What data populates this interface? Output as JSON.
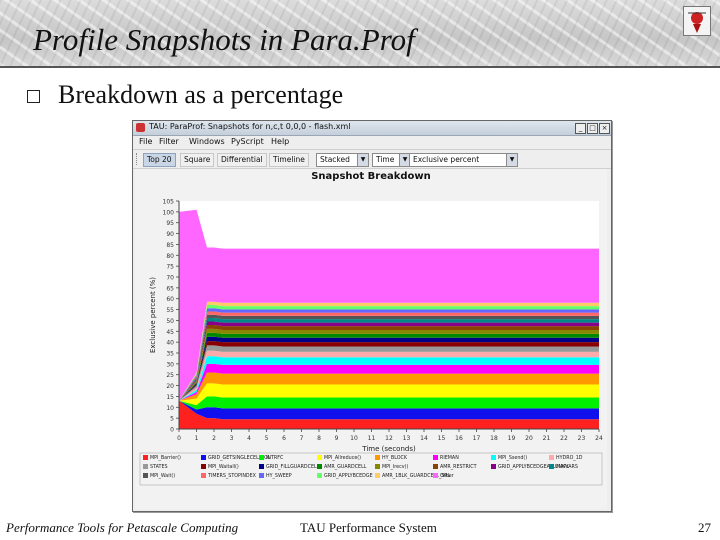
{
  "slide": {
    "title": "Profile Snapshots in Para.Prof",
    "bullet": "Breakdown as a percentage",
    "footer_left": "Performance Tools for Petascale Computing",
    "footer_center": "TAU Performance System",
    "page_number": "27"
  },
  "window": {
    "title": "TAU: ParaProf: Snapshots for n,c,t 0,0,0 - flash.xml",
    "menus": [
      "File",
      "Filter",
      "Windows",
      "PyScript",
      "Help"
    ],
    "tabs": [
      "Top 20",
      "Square",
      "Differential",
      "Timeline"
    ],
    "selected_tab": "Top 20",
    "chart_style_select": "Stacked",
    "x_axis_select": "Time",
    "metric_select": "Exclusive percent"
  },
  "chart_data": {
    "type": "area",
    "title": "Snapshot Breakdown",
    "xlabel": "Time (seconds)",
    "ylabel": "Exclusive percent (%)",
    "x_ticks": [
      "0",
      "1",
      "2",
      "3",
      "4",
      "5",
      "6",
      "7",
      "8",
      "9",
      "10",
      "11",
      "12",
      "13",
      "14",
      "15",
      "16",
      "17",
      "18",
      "19",
      "20",
      "21",
      "22",
      "23",
      "24"
    ],
    "y_ticks": [
      "0",
      "5",
      "10",
      "15",
      "20",
      "25",
      "30",
      "35",
      "40",
      "45",
      "50",
      "55",
      "60",
      "65",
      "70",
      "75",
      "80",
      "85",
      "90",
      "95",
      "100",
      "105"
    ],
    "xlim": [
      0,
      24
    ],
    "ylim": [
      0,
      105
    ],
    "x": [
      0,
      1,
      1.6,
      2,
      2.5,
      3,
      4,
      5,
      6,
      8,
      10,
      12,
      14,
      16,
      18,
      20,
      22,
      24
    ],
    "series_shape": [
      0,
      0,
      0.5,
      0.7,
      0.82,
      0.88,
      0.92,
      0.94,
      0.96,
      0.97,
      0.98,
      0.985,
      0.99,
      0.99,
      0.995,
      1.0,
      1.0,
      1.0
    ],
    "series": [
      {
        "name": "MPI_Barrier()",
        "color": "#ff2020",
        "values": [
          13,
          7,
          5,
          5,
          4.5,
          4.5,
          4.5,
          4.5,
          4.5,
          4.5,
          4.5,
          4.5,
          4.5,
          4.5,
          4.5,
          4.5,
          4.5,
          4.5
        ]
      },
      {
        "name": "GRID_GETSINGLECELLVOL",
        "color": "#1010ee",
        "values": [
          0,
          2,
          5,
          5,
          5,
          5,
          5,
          5,
          5,
          5,
          5,
          5,
          5,
          5,
          5,
          5,
          5,
          5
        ]
      },
      {
        "name": "INTRFC",
        "color": "#00ee00",
        "values": [
          0,
          2,
          5,
          5,
          5,
          5,
          5,
          5,
          5,
          5,
          5,
          5,
          5,
          5,
          5,
          5,
          5,
          5
        ]
      },
      {
        "name": "MPI_Allreduce()",
        "color": "#ffff00",
        "values": [
          0,
          3,
          6,
          6,
          6,
          6,
          6,
          6,
          6,
          6,
          6,
          6,
          6,
          6,
          6,
          6,
          6,
          6
        ]
      },
      {
        "name": "HY_BLOCK",
        "color": "#ff9900",
        "values": [
          0,
          2,
          5,
          5,
          5,
          5,
          5,
          5,
          5,
          5,
          5,
          5,
          5,
          5,
          5,
          5,
          5,
          5
        ]
      },
      {
        "name": "RIEMAN",
        "color": "#ff00ff",
        "values": [
          0,
          1,
          4,
          4,
          4,
          4,
          4,
          4,
          4,
          4,
          4,
          4,
          4,
          4,
          4,
          4,
          4,
          4
        ]
      },
      {
        "name": "MPI_Ssend()",
        "color": "#00ffff",
        "values": [
          0,
          1,
          3.5,
          3.5,
          3.5,
          3.5,
          3.5,
          3.5,
          3.5,
          3.5,
          3.5,
          3.5,
          3.5,
          3.5,
          3.5,
          3.5,
          3.5,
          3.5
        ]
      },
      {
        "name": "HYDRO_1D",
        "color": "#ffaaaa",
        "values": [
          0,
          1,
          2.5,
          2.5,
          2.5,
          2.5,
          2.5,
          2.5,
          2.5,
          2.5,
          2.5,
          2.5,
          2.5,
          2.5,
          2.5,
          2.5,
          2.5,
          2.5
        ]
      },
      {
        "name": "STATES",
        "color": "#999999",
        "values": [
          0,
          1,
          2.5,
          2.5,
          2.5,
          2.5,
          2.5,
          2.5,
          2.5,
          2.5,
          2.5,
          2.5,
          2.5,
          2.5,
          2.5,
          2.5,
          2.5,
          2.5
        ]
      },
      {
        "name": "MPI_Waitall()",
        "color": "#880000",
        "values": [
          0,
          0.5,
          2,
          2,
          2,
          2,
          2,
          2,
          2,
          2,
          2,
          2,
          2,
          2,
          2,
          2,
          2,
          2
        ]
      },
      {
        "name": "GRID_FILLGUARDCELLS",
        "color": "#000088",
        "values": [
          0,
          0.5,
          2,
          2,
          2,
          2,
          2,
          2,
          2,
          2,
          2,
          2,
          2,
          2,
          2,
          2,
          2,
          2
        ]
      },
      {
        "name": "AMR_GUARDCELL",
        "color": "#008800",
        "values": [
          0,
          0.5,
          1.8,
          1.8,
          1.8,
          1.8,
          1.8,
          1.8,
          1.8,
          1.8,
          1.8,
          1.8,
          1.8,
          1.8,
          1.8,
          1.8,
          1.8,
          1.8
        ]
      },
      {
        "name": "MPI_Irecv()",
        "color": "#888800",
        "values": [
          0,
          0.5,
          1.8,
          1.8,
          1.8,
          1.8,
          1.8,
          1.8,
          1.8,
          1.8,
          1.8,
          1.8,
          1.8,
          1.8,
          1.8,
          1.8,
          1.8,
          1.8
        ]
      },
      {
        "name": "AMR_RESTRICT",
        "color": "#884400",
        "values": [
          0,
          0.5,
          1.8,
          1.8,
          1.8,
          1.8,
          1.8,
          1.8,
          1.8,
          1.8,
          1.8,
          1.8,
          1.8,
          1.8,
          1.8,
          1.8,
          1.8,
          1.8
        ]
      },
      {
        "name": "GRID_APPLYBCEDGEALLUNKVARS",
        "color": "#880088",
        "values": [
          0,
          0.5,
          1.6,
          1.6,
          1.6,
          1.6,
          1.6,
          1.6,
          1.6,
          1.6,
          1.6,
          1.6,
          1.6,
          1.6,
          1.6,
          1.6,
          1.6,
          1.6
        ]
      },
      {
        "name": "MAPL",
        "color": "#008888",
        "values": [
          0,
          0.5,
          1.6,
          1.6,
          1.6,
          1.6,
          1.6,
          1.6,
          1.6,
          1.6,
          1.6,
          1.6,
          1.6,
          1.6,
          1.6,
          1.6,
          1.6,
          1.6
        ]
      },
      {
        "name": "MPI_Wait()",
        "color": "#555555",
        "values": [
          0,
          0.5,
          1.5,
          1.5,
          1.5,
          1.5,
          1.5,
          1.5,
          1.5,
          1.5,
          1.5,
          1.5,
          1.5,
          1.5,
          1.5,
          1.5,
          1.5,
          1.5
        ]
      },
      {
        "name": "TIMERS_STOPINDEX",
        "color": "#ff6666",
        "values": [
          0,
          0.5,
          1.5,
          1.5,
          1.5,
          1.5,
          1.5,
          1.5,
          1.5,
          1.5,
          1.5,
          1.5,
          1.5,
          1.5,
          1.5,
          1.5,
          1.5,
          1.5
        ]
      },
      {
        "name": "HY_SWEEP",
        "color": "#6666ff",
        "values": [
          0,
          0.5,
          1.5,
          1.5,
          1.5,
          1.5,
          1.5,
          1.5,
          1.5,
          1.5,
          1.5,
          1.5,
          1.5,
          1.5,
          1.5,
          1.5,
          1.5,
          1.5
        ]
      },
      {
        "name": "GRID_APPLYBCEDGE",
        "color": "#66ff66",
        "values": [
          0,
          0.5,
          1.5,
          1.5,
          1.5,
          1.5,
          1.5,
          1.5,
          1.5,
          1.5,
          1.5,
          1.5,
          1.5,
          1.5,
          1.5,
          1.5,
          1.5,
          1.5
        ]
      },
      {
        "name": "AMR_1BLK_GUARDCELL_SRL",
        "color": "#ffcc66",
        "values": [
          0,
          0.5,
          1.5,
          1.5,
          1.5,
          1.5,
          1.5,
          1.5,
          1.5,
          1.5,
          1.5,
          1.5,
          1.5,
          1.5,
          1.5,
          1.5,
          1.5,
          1.5
        ]
      },
      {
        "name": "Other",
        "color": "#ff66ff",
        "values": [
          87,
          75,
          25,
          25,
          25,
          25,
          25,
          25,
          25,
          25,
          25,
          25,
          25,
          25,
          25,
          25,
          25,
          25
        ]
      }
    ],
    "grid": false,
    "legend_position": "bottom"
  }
}
